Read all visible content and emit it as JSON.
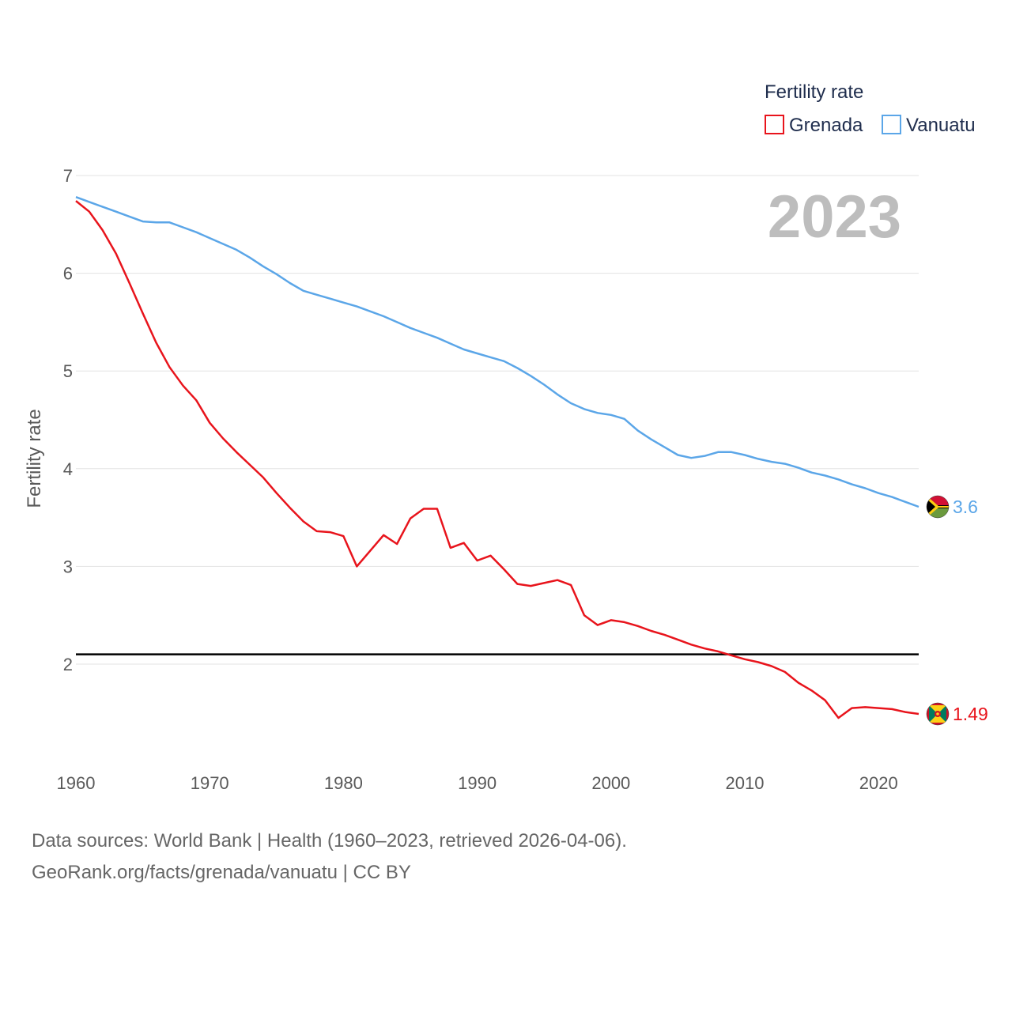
{
  "chart_data": {
    "type": "line",
    "title": "2023",
    "xlabel": "",
    "ylabel": "Fertility rate",
    "xlim": [
      1960,
      2023
    ],
    "ylim": [
      1.2,
      7
    ],
    "yticks": [
      2,
      3,
      4,
      5,
      6,
      7
    ],
    "xticks": [
      1960,
      1970,
      1980,
      1990,
      2000,
      2010,
      2020
    ],
    "grid": true,
    "legend": {
      "title": "Fertility rate",
      "position": "top-right"
    },
    "reference_line": {
      "y": 2.1,
      "color": "#000000"
    },
    "x": [
      1960,
      1961,
      1962,
      1963,
      1964,
      1965,
      1966,
      1967,
      1968,
      1969,
      1970,
      1971,
      1972,
      1973,
      1974,
      1975,
      1976,
      1977,
      1978,
      1979,
      1980,
      1981,
      1982,
      1983,
      1984,
      1985,
      1986,
      1987,
      1988,
      1989,
      1990,
      1991,
      1992,
      1993,
      1994,
      1995,
      1996,
      1997,
      1998,
      1999,
      2000,
      2001,
      2002,
      2003,
      2004,
      2005,
      2006,
      2007,
      2008,
      2009,
      2010,
      2011,
      2012,
      2013,
      2014,
      2015,
      2016,
      2017,
      2018,
      2019,
      2020,
      2021,
      2022,
      2023
    ],
    "series": [
      {
        "name": "Grenada",
        "color": "#e8141c",
        "end_label": "1.49",
        "values": [
          6.74,
          6.63,
          6.44,
          6.2,
          5.9,
          5.59,
          5.29,
          5.04,
          4.85,
          4.7,
          4.47,
          4.31,
          4.17,
          4.04,
          3.91,
          3.75,
          3.6,
          3.46,
          3.36,
          3.35,
          3.31,
          3.0,
          3.16,
          3.32,
          3.23,
          3.49,
          3.59,
          3.59,
          3.19,
          3.24,
          3.06,
          3.11,
          2.97,
          2.82,
          2.8,
          2.83,
          2.86,
          2.81,
          2.5,
          2.4,
          2.45,
          2.43,
          2.39,
          2.34,
          2.3,
          2.25,
          2.2,
          2.16,
          2.13,
          2.09,
          2.05,
          2.02,
          1.98,
          1.92,
          1.81,
          1.73,
          1.63,
          1.45,
          1.55,
          1.56,
          1.55,
          1.54,
          1.51,
          1.49
        ]
      },
      {
        "name": "Vanuatu",
        "color": "#5ba6e8",
        "end_label": "3.6",
        "values": [
          6.78,
          6.73,
          6.68,
          6.63,
          6.58,
          6.53,
          6.52,
          6.52,
          6.47,
          6.42,
          6.36,
          6.3,
          6.24,
          6.16,
          6.07,
          5.99,
          5.9,
          5.82,
          5.78,
          5.74,
          5.7,
          5.66,
          5.61,
          5.56,
          5.5,
          5.44,
          5.39,
          5.34,
          5.28,
          5.22,
          5.18,
          5.14,
          5.1,
          5.03,
          4.95,
          4.86,
          4.76,
          4.67,
          4.61,
          4.57,
          4.55,
          4.51,
          4.39,
          4.3,
          4.22,
          4.14,
          4.11,
          4.13,
          4.17,
          4.17,
          4.14,
          4.1,
          4.07,
          4.05,
          4.01,
          3.96,
          3.93,
          3.89,
          3.84,
          3.8,
          3.75,
          3.71,
          3.66,
          3.61
        ]
      }
    ]
  },
  "source": {
    "line1": "Data sources: World Bank | Health (1960–2023, retrieved 2026-04-06).",
    "line2": "GeoRank.org/facts/grenada/vanuatu | CC BY"
  }
}
